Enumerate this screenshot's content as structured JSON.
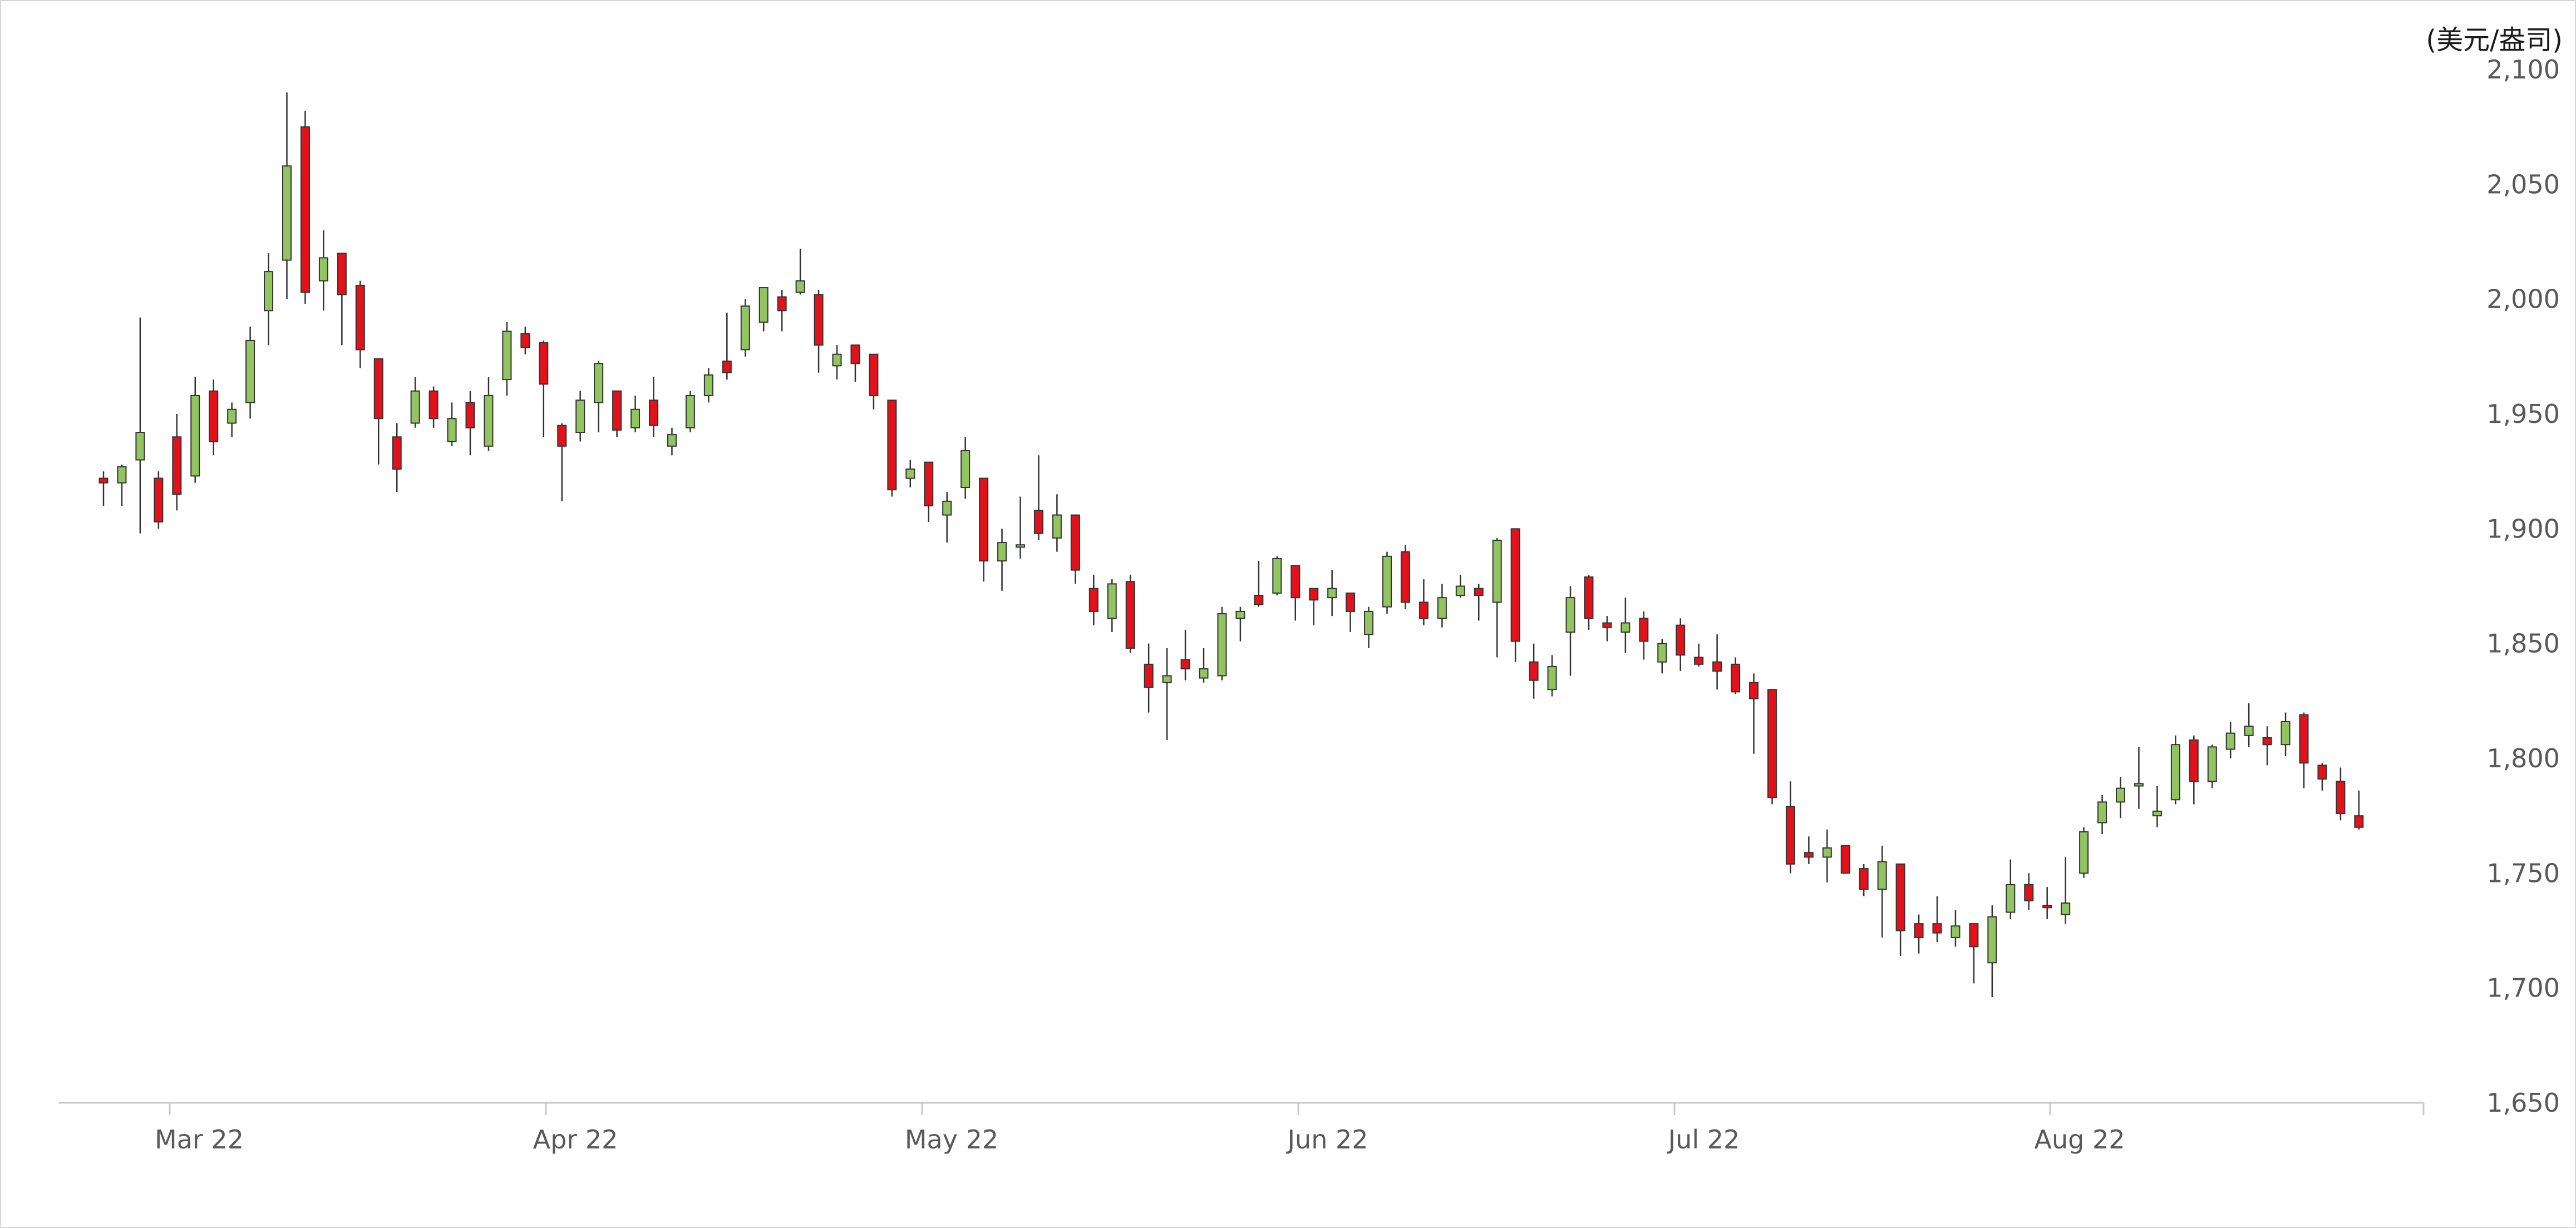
{
  "chart_data": {
    "type": "candlestick",
    "unit_label": "(美元/盎司)",
    "ylim": [
      1650,
      2100
    ],
    "y_ticks": [
      "2,100",
      "2,050",
      "2,000",
      "1,950",
      "1,900",
      "1,850",
      "1,800",
      "1,750",
      "1,700",
      "1,650"
    ],
    "y_tick_values": [
      2100,
      2050,
      2000,
      1950,
      1900,
      1850,
      1800,
      1750,
      1700,
      1650
    ],
    "x_ticks": [
      "Mar 22",
      "Apr 22",
      "May 22",
      "Jun 22",
      "Jul 22",
      "Aug 22"
    ],
    "axis_position": "right",
    "grid": false,
    "colors": {
      "up": "#92c560",
      "down": "#e3121a",
      "outline": "#333333",
      "axis": "#c8c8c8",
      "tick_text": "#595959"
    },
    "candles": [
      [
        1922,
        1925,
        1910,
        1920
      ],
      [
        1920,
        1928,
        1910,
        1927
      ],
      [
        1930,
        1992,
        1898,
        1942
      ],
      [
        1922,
        1925,
        1900,
        1903
      ],
      [
        1940,
        1950,
        1908,
        1915
      ],
      [
        1923,
        1966,
        1920,
        1958
      ],
      [
        1960,
        1965,
        1932,
        1938
      ],
      [
        1946,
        1955,
        1940,
        1952
      ],
      [
        1955,
        1988,
        1948,
        1982
      ],
      [
        1995,
        2020,
        1980,
        2012
      ],
      [
        2017,
        2090,
        2000,
        2058
      ],
      [
        2075,
        2082,
        1998,
        2003
      ],
      [
        2008,
        2030,
        1995,
        2018
      ],
      [
        2020,
        2020,
        1980,
        2002
      ],
      [
        2006,
        2008,
        1970,
        1978
      ],
      [
        1974,
        1974,
        1928,
        1948
      ],
      [
        1940,
        1946,
        1916,
        1926
      ],
      [
        1946,
        1966,
        1944,
        1960
      ],
      [
        1960,
        1962,
        1944,
        1948
      ],
      [
        1938,
        1955,
        1936,
        1948
      ],
      [
        1955,
        1960,
        1932,
        1944
      ],
      [
        1936,
        1966,
        1934,
        1958
      ],
      [
        1965,
        1990,
        1958,
        1986
      ],
      [
        1985,
        1988,
        1976,
        1979
      ],
      [
        1981,
        1982,
        1940,
        1963
      ],
      [
        1945,
        1946,
        1912,
        1936
      ],
      [
        1942,
        1960,
        1938,
        1956
      ],
      [
        1955,
        1973,
        1942,
        1972
      ],
      [
        1960,
        1960,
        1940,
        1943
      ],
      [
        1944,
        1958,
        1942,
        1952
      ],
      [
        1956,
        1966,
        1940,
        1945
      ],
      [
        1936,
        1944,
        1932,
        1941
      ],
      [
        1944,
        1960,
        1942,
        1958
      ],
      [
        1958,
        1970,
        1955,
        1967
      ],
      [
        1973,
        1994,
        1965,
        1968
      ],
      [
        1978,
        2000,
        1975,
        1997
      ],
      [
        1990,
        2004,
        1986,
        2005
      ],
      [
        2001,
        2004,
        1986,
        1995
      ],
      [
        2003,
        2022,
        2002,
        2008
      ],
      [
        2002,
        2004,
        1968,
        1980
      ],
      [
        1971,
        1980,
        1965,
        1976
      ],
      [
        1980,
        1980,
        1964,
        1972
      ],
      [
        1976,
        1976,
        1952,
        1958
      ],
      [
        1956,
        1956,
        1914,
        1917
      ],
      [
        1922,
        1930,
        1918,
        1926
      ],
      [
        1929,
        1929,
        1903,
        1910
      ],
      [
        1906,
        1916,
        1894,
        1912
      ],
      [
        1918,
        1940,
        1913,
        1934
      ],
      [
        1922,
        1922,
        1877,
        1886
      ],
      [
        1886,
        1900,
        1873,
        1894
      ],
      [
        1892,
        1914,
        1887,
        1893
      ],
      [
        1908,
        1932,
        1895,
        1898
      ],
      [
        1896,
        1915,
        1890,
        1906
      ],
      [
        1906,
        1906,
        1876,
        1882
      ],
      [
        1874,
        1880,
        1858,
        1864
      ],
      [
        1861,
        1878,
        1855,
        1876
      ],
      [
        1877,
        1880,
        1846,
        1848
      ],
      [
        1841,
        1850,
        1820,
        1831
      ],
      [
        1833,
        1848,
        1808,
        1836
      ],
      [
        1843,
        1856,
        1834,
        1839
      ],
      [
        1835,
        1848,
        1833,
        1839
      ],
      [
        1836,
        1866,
        1834,
        1863
      ],
      [
        1861,
        1866,
        1851,
        1864
      ],
      [
        1871,
        1886,
        1866,
        1867
      ],
      [
        1872,
        1888,
        1871,
        1887
      ],
      [
        1884,
        1884,
        1860,
        1870
      ],
      [
        1874,
        1874,
        1858,
        1869
      ],
      [
        1870,
        1882,
        1862,
        1874
      ],
      [
        1872,
        1872,
        1855,
        1864
      ],
      [
        1854,
        1866,
        1848,
        1864
      ],
      [
        1866,
        1890,
        1863,
        1888
      ],
      [
        1890,
        1893,
        1865,
        1868
      ],
      [
        1868,
        1878,
        1858,
        1861
      ],
      [
        1861,
        1876,
        1857,
        1870
      ],
      [
        1871,
        1880,
        1870,
        1875
      ],
      [
        1874,
        1876,
        1860,
        1871
      ],
      [
        1868,
        1896,
        1844,
        1895
      ],
      [
        1900,
        1900,
        1842,
        1851
      ],
      [
        1842,
        1850,
        1826,
        1834
      ],
      [
        1830,
        1845,
        1827,
        1840
      ],
      [
        1855,
        1875,
        1836,
        1870
      ],
      [
        1879,
        1880,
        1856,
        1861
      ],
      [
        1859,
        1862,
        1851,
        1857
      ],
      [
        1855,
        1870,
        1846,
        1859
      ],
      [
        1861,
        1864,
        1843,
        1851
      ],
      [
        1842,
        1852,
        1837,
        1850
      ],
      [
        1858,
        1861,
        1838,
        1845
      ],
      [
        1844,
        1850,
        1840,
        1841
      ],
      [
        1842,
        1854,
        1830,
        1838
      ],
      [
        1841,
        1844,
        1828,
        1829
      ],
      [
        1833,
        1837,
        1802,
        1826
      ],
      [
        1830,
        1830,
        1780,
        1783
      ],
      [
        1779,
        1790,
        1750,
        1754
      ],
      [
        1759,
        1766,
        1754,
        1757
      ],
      [
        1757,
        1769,
        1746,
        1761
      ],
      [
        1762,
        1762,
        1750,
        1750
      ],
      [
        1752,
        1754,
        1740,
        1743
      ],
      [
        1743,
        1762,
        1722,
        1755
      ],
      [
        1754,
        1754,
        1714,
        1725
      ],
      [
        1728,
        1732,
        1715,
        1722
      ],
      [
        1728,
        1740,
        1720,
        1724
      ],
      [
        1722,
        1734,
        1718,
        1727
      ],
      [
        1728,
        1728,
        1702,
        1718
      ],
      [
        1711,
        1736,
        1696,
        1731
      ],
      [
        1733,
        1756,
        1730,
        1745
      ],
      [
        1745,
        1750,
        1734,
        1738
      ],
      [
        1736,
        1744,
        1730,
        1735
      ],
      [
        1732,
        1757,
        1728,
        1737
      ],
      [
        1750,
        1770,
        1748,
        1768
      ],
      [
        1772,
        1784,
        1767,
        1781
      ],
      [
        1781,
        1792,
        1774,
        1787
      ],
      [
        1788,
        1805,
        1778,
        1789
      ],
      [
        1775,
        1788,
        1770,
        1777
      ],
      [
        1782,
        1810,
        1780,
        1806
      ],
      [
        1808,
        1810,
        1780,
        1790
      ],
      [
        1790,
        1806,
        1787,
        1805
      ],
      [
        1804,
        1816,
        1800,
        1811
      ],
      [
        1810,
        1824,
        1805,
        1814
      ],
      [
        1809,
        1814,
        1797,
        1806
      ],
      [
        1806,
        1820,
        1801,
        1816
      ],
      [
        1819,
        1820,
        1787,
        1798
      ],
      [
        1797,
        1798,
        1786,
        1791
      ],
      [
        1790,
        1796,
        1773,
        1776
      ],
      [
        1775,
        1786,
        1769,
        1770
      ]
    ]
  }
}
